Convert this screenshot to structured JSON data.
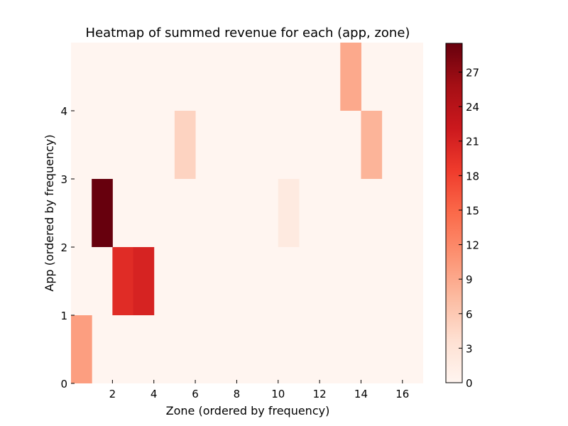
{
  "chart_data": {
    "type": "heatmap",
    "title": "Heatmap of summed revenue for each (app, zone)",
    "xlabel": "Zone (ordered by frequency)",
    "ylabel": "App (ordered by frequency)",
    "xlim": [
      0,
      17
    ],
    "ylim": [
      0,
      5
    ],
    "xticks": [
      2,
      4,
      6,
      8,
      10,
      12,
      14,
      16
    ],
    "yticks": [
      0,
      1,
      2,
      3,
      4
    ],
    "colormap": "Reds",
    "colormap_stops": [
      "#fff5f0",
      "#fee0d2",
      "#fcbba1",
      "#fc9272",
      "#fb6a4a",
      "#ef3b2c",
      "#cb181d",
      "#a50f15",
      "#67000d"
    ],
    "vmin": 0,
    "vmax": 29.5,
    "colorbar_ticks": [
      0,
      3,
      6,
      9,
      12,
      15,
      18,
      21,
      24,
      27
    ],
    "background_value": 0,
    "cells": [
      {
        "zone": 0,
        "app": 0,
        "value": 10
      },
      {
        "zone": 2,
        "app": 1,
        "value": 20
      },
      {
        "zone": 3,
        "app": 1,
        "value": 21
      },
      {
        "zone": 1,
        "app": 2,
        "value": 29.5
      },
      {
        "zone": 10,
        "app": 2,
        "value": 2
      },
      {
        "zone": 5,
        "app": 3,
        "value": 5
      },
      {
        "zone": 14,
        "app": 3,
        "value": 8
      },
      {
        "zone": 13,
        "app": 4,
        "value": 9
      }
    ]
  }
}
